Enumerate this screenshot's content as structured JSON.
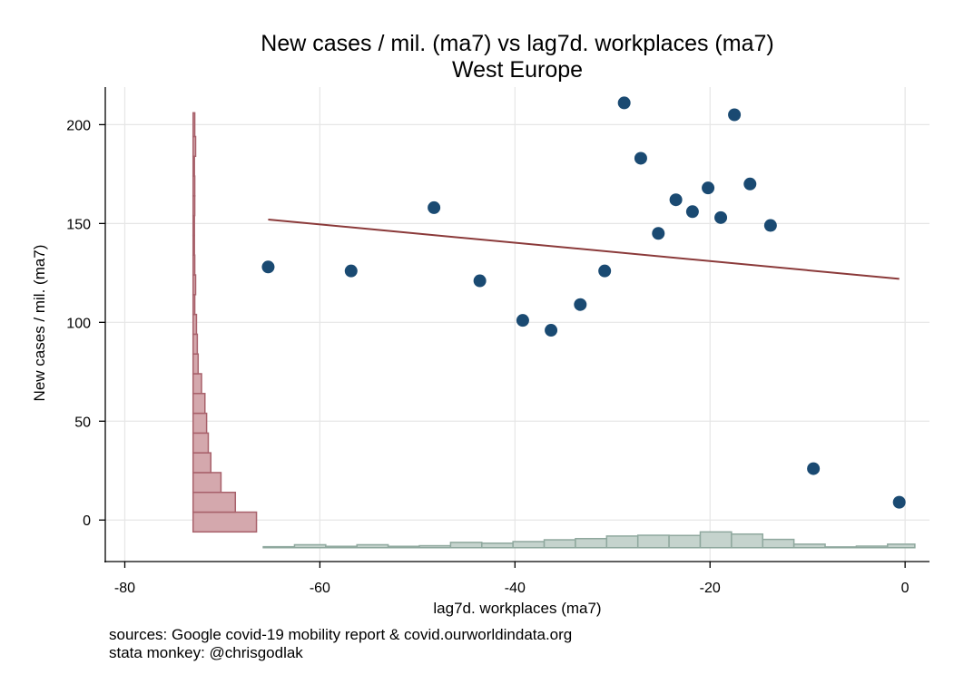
{
  "chart_data": {
    "type": "scatter",
    "title": "New cases / mil. (ma7) vs lag7d. workplaces (ma7)",
    "subtitle": "West Europe",
    "xlabel": "lag7d. workplaces (ma7)",
    "ylabel": "New cases / mil. (ma7)",
    "xlim": [
      -82,
      2.5
    ],
    "ylim": [
      -21,
      219
    ],
    "xticks": [
      -80,
      -60,
      -40,
      -20,
      0
    ],
    "yticks": [
      0,
      50,
      100,
      150,
      200
    ],
    "grid": true,
    "points": [
      {
        "x": -65.3,
        "y": 128
      },
      {
        "x": -56.8,
        "y": 126
      },
      {
        "x": -48.3,
        "y": 158
      },
      {
        "x": -43.6,
        "y": 121
      },
      {
        "x": -39.2,
        "y": 101
      },
      {
        "x": -36.3,
        "y": 96
      },
      {
        "x": -33.3,
        "y": 109
      },
      {
        "x": -30.8,
        "y": 126
      },
      {
        "x": -28.8,
        "y": 211
      },
      {
        "x": -27.1,
        "y": 183
      },
      {
        "x": -25.3,
        "y": 145
      },
      {
        "x": -23.5,
        "y": 162
      },
      {
        "x": -21.8,
        "y": 156
      },
      {
        "x": -20.2,
        "y": 168
      },
      {
        "x": -18.9,
        "y": 153
      },
      {
        "x": -17.5,
        "y": 205
      },
      {
        "x": -15.9,
        "y": 170
      },
      {
        "x": -13.8,
        "y": 149
      },
      {
        "x": -9.4,
        "y": 26
      },
      {
        "x": -0.6,
        "y": 9
      }
    ],
    "fit_line": {
      "x": [
        -65.3,
        -0.6
      ],
      "y": [
        152,
        122
      ]
    },
    "x_histogram": {
      "bins": [
        -65.8,
        -62.6,
        -59.4,
        -56.2,
        -53.0,
        -49.8,
        -46.6,
        -43.4,
        -40.2,
        -37.0,
        -33.8,
        -30.6,
        -27.4,
        -24.2,
        -21.0,
        -17.8,
        -14.6,
        -11.4,
        -8.2,
        -5.0,
        -1.8,
        1.0
      ],
      "heights": [
        0.5,
        1.5,
        0.7,
        1.5,
        0.7,
        1.0,
        2.7,
        2.3,
        3.1,
        4.0,
        4.6,
        5.9,
        6.3,
        6.2,
        8.0,
        6.9,
        4.2,
        1.8,
        0.4,
        0.8,
        1.8
      ]
    },
    "y_histogram": {
      "bins": [
        -6,
        4,
        14,
        24,
        34,
        44,
        54,
        64,
        74,
        84,
        94,
        104,
        114,
        124,
        134,
        144,
        154,
        164,
        174,
        184,
        194,
        206
      ],
      "widths": [
        7.5,
        5.0,
        3.3,
        2.1,
        1.8,
        1.6,
        1.4,
        1.0,
        0.6,
        0.5,
        0.4,
        0.2,
        0.3,
        0.2,
        0.15,
        0.15,
        0.2,
        0.2,
        0.15,
        0.3,
        0.2,
        0.7
      ]
    },
    "colors": {
      "points": "#1a4a72",
      "fit_line": "#8b3a3a",
      "x_hist_fill": "#c5d3cd",
      "x_hist_edge": "#8fa89e",
      "y_hist_fill": "#d4a8ad",
      "y_hist_edge": "#a8616b",
      "grid": "#e6e6e6"
    }
  },
  "notes": {
    "line1": "sources: Google covid-19 mobility report & covid.ourworldindata.org",
    "line2": "stata monkey: @chrisgodlak"
  }
}
